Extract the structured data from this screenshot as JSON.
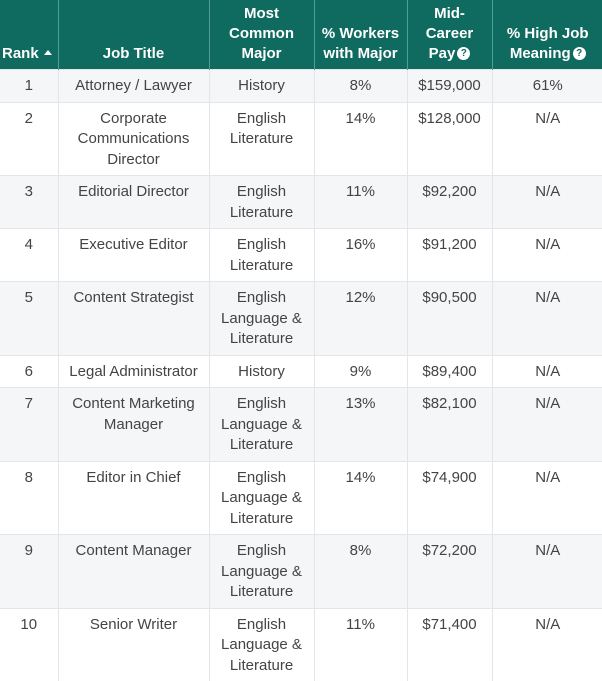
{
  "table": {
    "columns": [
      {
        "key": "rank",
        "label": "Rank",
        "sort": "ascending",
        "help": false
      },
      {
        "key": "job_title",
        "label": "Job Title",
        "help": false
      },
      {
        "key": "major",
        "label": "Most Common Major",
        "help": false
      },
      {
        "key": "workers",
        "label": "% Workers with Major",
        "help": false
      },
      {
        "key": "pay",
        "label": "Mid-Career Pay",
        "help": true
      },
      {
        "key": "meaning",
        "label": "% High Job Meaning",
        "help": true
      }
    ],
    "header": {
      "rank": "Rank",
      "job_title": "Job Title",
      "major_l1": "Most",
      "major_l2": "Common",
      "major_l3": "Major",
      "workers_l1": "% Workers",
      "workers_l2": "with Major",
      "pay_l1": "Mid-",
      "pay_l2": "Career",
      "pay_l3": "Pay",
      "meaning_l1": "% High Job",
      "meaning_l2": "Meaning",
      "help_glyph": "?"
    },
    "rows": [
      {
        "rank": "1",
        "job_title": "Attorney / Lawyer",
        "major": "History",
        "workers": "8%",
        "pay": "$159,000",
        "meaning": "61%"
      },
      {
        "rank": "2",
        "job_title": "Corporate Communications Director",
        "major": "English Literature",
        "workers": "14%",
        "pay": "$128,000",
        "meaning": "N/A"
      },
      {
        "rank": "3",
        "job_title": "Editorial Director",
        "major": "English Literature",
        "workers": "11%",
        "pay": "$92,200",
        "meaning": "N/A"
      },
      {
        "rank": "4",
        "job_title": "Executive Editor",
        "major": "English Literature",
        "workers": "16%",
        "pay": "$91,200",
        "meaning": "N/A"
      },
      {
        "rank": "5",
        "job_title": "Content Strategist",
        "major": "English Language & Literature",
        "workers": "12%",
        "pay": "$90,500",
        "meaning": "N/A"
      },
      {
        "rank": "6",
        "job_title": "Legal Administrator",
        "major": "History",
        "workers": "9%",
        "pay": "$89,400",
        "meaning": "N/A"
      },
      {
        "rank": "7",
        "job_title": "Content Marketing Manager",
        "major": "English Language & Literature",
        "workers": "13%",
        "pay": "$82,100",
        "meaning": "N/A"
      },
      {
        "rank": "8",
        "job_title": "Editor in Chief",
        "major": "English Language & Literature",
        "workers": "14%",
        "pay": "$74,900",
        "meaning": "N/A"
      },
      {
        "rank": "9",
        "job_title": "Content Manager",
        "major": "English Language & Literature",
        "workers": "8%",
        "pay": "$72,200",
        "meaning": "N/A"
      },
      {
        "rank": "10",
        "job_title": "Senior Writer",
        "major": "English Language & Literature",
        "workers": "11%",
        "pay": "$71,400",
        "meaning": "N/A"
      }
    ]
  },
  "colors": {
    "header_bg": "#0f6a60",
    "header_text": "#ffffff",
    "row_alt_bg": "#f5f6f8",
    "cell_text": "#444444",
    "border": "#e3e5e8"
  }
}
